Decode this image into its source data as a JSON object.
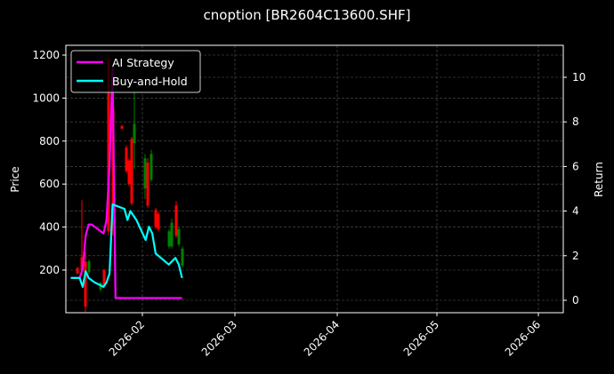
{
  "title": "cnoption [BR2604C13600.SHF]",
  "colors": {
    "background": "#000000",
    "ai_strategy": "#ff00ff",
    "buy_and_hold": "#00ffff",
    "candle_up": "#008000",
    "candle_down": "#ff0000",
    "grid": "#555555",
    "frame": "#ffffff"
  },
  "chart_data": {
    "type": "line",
    "title": "cnoption [BR2604C13600.SHF]",
    "xlabel": "",
    "ylabel_left": "Price",
    "ylabel_right": "Return",
    "x_ticks": [
      "2026-02",
      "2026-03",
      "2026-04",
      "2026-05",
      "2026-06"
    ],
    "y_ticks_left": [
      200,
      400,
      600,
      800,
      1000,
      1200
    ],
    "y_ticks_right": [
      0,
      2,
      4,
      6,
      8,
      10
    ],
    "ylim_left": [
      0,
      1240
    ],
    "ylim_right": [
      -0.6,
      11.4
    ],
    "grid": true,
    "legend": {
      "position": "upper left",
      "entries": [
        "AI Strategy",
        "Buy-and-Hold"
      ]
    },
    "series": [
      {
        "name": "AI Strategy",
        "axis": "right",
        "points": [
          [
            "2026-01-08",
            1.0
          ],
          [
            "2026-01-11",
            1.0
          ],
          [
            "2026-01-12",
            1.4
          ],
          [
            "2026-01-13",
            2.9
          ],
          [
            "2026-01-14",
            3.4
          ],
          [
            "2026-01-15",
            3.4
          ],
          [
            "2026-01-19",
            3.0
          ],
          [
            "2026-01-20",
            3.6
          ],
          [
            "2026-01-21",
            6.0
          ],
          [
            "2026-01-22",
            10.4
          ],
          [
            "2026-01-23",
            0.1
          ],
          [
            "2026-02-13",
            0.1
          ]
        ]
      },
      {
        "name": "Buy-and-Hold",
        "axis": "right",
        "points": [
          [
            "2026-01-08",
            1.0
          ],
          [
            "2026-01-11",
            1.0
          ],
          [
            "2026-01-12",
            0.6
          ],
          [
            "2026-01-13",
            1.3
          ],
          [
            "2026-01-14",
            1.0
          ],
          [
            "2026-01-16",
            0.8
          ],
          [
            "2026-01-19",
            0.6
          ],
          [
            "2026-01-20",
            0.8
          ],
          [
            "2026-01-21",
            1.2
          ],
          [
            "2026-01-22",
            4.3
          ],
          [
            "2026-01-26",
            4.1
          ],
          [
            "2026-01-27",
            3.6
          ],
          [
            "2026-01-28",
            4.0
          ],
          [
            "2026-01-30",
            3.6
          ],
          [
            "2026-02-02",
            2.7
          ],
          [
            "2026-02-03",
            3.3
          ],
          [
            "2026-02-04",
            3.0
          ],
          [
            "2026-02-05",
            2.1
          ],
          [
            "2026-02-09",
            1.6
          ],
          [
            "2026-02-11",
            1.9
          ],
          [
            "2026-02-12",
            1.6
          ],
          [
            "2026-02-13",
            1.0
          ]
        ]
      }
    ],
    "candles": [
      {
        "x": 87,
        "high": 215,
        "low": 180,
        "open": 210,
        "close": 185,
        "dir": "down"
      },
      {
        "x": 92,
        "high": 525,
        "low": 175,
        "open": 260,
        "close": 200,
        "dir": "down"
      },
      {
        "x": 96,
        "high": 285,
        "low": 0,
        "open": 240,
        "close": 30,
        "dir": "down"
      },
      {
        "x": 100,
        "high": 250,
        "low": 180,
        "open": 190,
        "close": 240,
        "dir": "up"
      },
      {
        "x": 113,
        "high": 145,
        "low": 100,
        "open": 110,
        "close": 140,
        "dir": "up"
      },
      {
        "x": 117,
        "high": 205,
        "low": 120,
        "open": 200,
        "close": 130,
        "dir": "down"
      },
      {
        "x": 122,
        "high": 1200,
        "low": 360,
        "open": 1180,
        "close": 380,
        "dir": "down"
      },
      {
        "x": 127,
        "high": 970,
        "low": 360,
        "open": 950,
        "close": 400,
        "dir": "down"
      },
      {
        "x": 137,
        "high": 875,
        "low": 855,
        "open": 870,
        "close": 858,
        "dir": "down"
      },
      {
        "x": 142,
        "high": 780,
        "low": 650,
        "open": 770,
        "close": 660,
        "dir": "down"
      },
      {
        "x": 145,
        "high": 720,
        "low": 590,
        "open": 710,
        "close": 600,
        "dir": "down"
      },
      {
        "x": 148,
        "high": 820,
        "low": 500,
        "open": 810,
        "close": 510,
        "dir": "down"
      },
      {
        "x": 151,
        "high": 1030,
        "low": 670,
        "open": 790,
        "close": 880,
        "dir": "up"
      },
      {
        "x": 163,
        "high": 740,
        "low": 530,
        "open": 580,
        "close": 720,
        "dir": "up"
      },
      {
        "x": 166,
        "high": 720,
        "low": 490,
        "open": 700,
        "close": 500,
        "dir": "down"
      },
      {
        "x": 170,
        "high": 760,
        "low": 610,
        "open": 620,
        "close": 740,
        "dir": "up"
      },
      {
        "x": 175,
        "high": 490,
        "low": 390,
        "open": 480,
        "close": 400,
        "dir": "down"
      },
      {
        "x": 178,
        "high": 470,
        "low": 380,
        "open": 460,
        "close": 390,
        "dir": "down"
      },
      {
        "x": 190,
        "high": 390,
        "low": 300,
        "open": 310,
        "close": 380,
        "dir": "up"
      },
      {
        "x": 193,
        "high": 440,
        "low": 300,
        "open": 310,
        "close": 420,
        "dir": "up"
      },
      {
        "x": 198,
        "high": 520,
        "low": 350,
        "open": 500,
        "close": 360,
        "dir": "down"
      },
      {
        "x": 201,
        "high": 400,
        "low": 310,
        "open": 320,
        "close": 390,
        "dir": "up"
      },
      {
        "x": 205,
        "high": 310,
        "low": 210,
        "open": 220,
        "close": 300,
        "dir": "up"
      }
    ]
  }
}
